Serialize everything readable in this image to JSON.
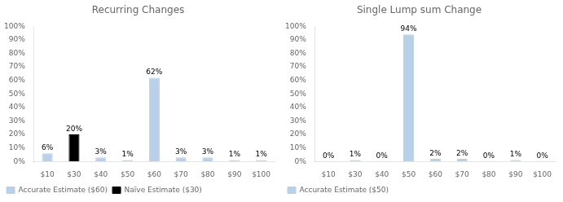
{
  "chart_data": [
    {
      "type": "bar",
      "title": "Recurring Changes",
      "categories": [
        "$10",
        "$30",
        "$40",
        "$50",
        "$60",
        "$70",
        "$80",
        "$90",
        "$100"
      ],
      "series": [
        {
          "name": "Accurate Estimate ($60)",
          "color": "#b8d0e8",
          "values": [
            6,
            null,
            3,
            1,
            62,
            3,
            3,
            1,
            1
          ],
          "value_labels": [
            "6%",
            null,
            "3%",
            "1%",
            "62%",
            "3%",
            "3%",
            "1%",
            "1%"
          ]
        },
        {
          "name": "Naïve Estimate ($30)",
          "color": "#000000",
          "values": [
            null,
            20,
            null,
            null,
            null,
            null,
            null,
            null,
            null
          ],
          "value_labels": [
            null,
            "20%",
            null,
            null,
            null,
            null,
            null,
            null,
            null
          ]
        }
      ],
      "ylim": [
        0,
        100
      ],
      "yticks": [
        {
          "value": 0,
          "label": "0%"
        },
        {
          "value": 10,
          "label": "10%"
        },
        {
          "value": 20,
          "label": "20%"
        },
        {
          "value": 30,
          "label": "30%"
        },
        {
          "value": 40,
          "label": "40%"
        },
        {
          "value": 50,
          "label": "50%"
        },
        {
          "value": 60,
          "label": "60%"
        },
        {
          "value": 70,
          "label": "70%"
        },
        {
          "value": 80,
          "label": "80%"
        },
        {
          "value": 90,
          "label": "90%"
        },
        {
          "value": 100,
          "label": "100%"
        }
      ],
      "grid": false,
      "legend": "bottom",
      "data_labels": true
    },
    {
      "type": "bar",
      "title": "Single Lump sum Change",
      "categories": [
        "$10",
        "$30",
        "$40",
        "$50",
        "$60",
        "$70",
        "$80",
        "$90",
        "$100"
      ],
      "series": [
        {
          "name": "Accurate Estimate ($50)",
          "color": "#b8d0e8",
          "values": [
            0,
            1,
            0,
            94,
            2,
            2,
            0,
            1,
            0
          ],
          "value_labels": [
            "0%",
            "1%",
            "0%",
            "94%",
            "2%",
            "2%",
            "0%",
            "1%",
            "0%"
          ]
        }
      ],
      "ylim": [
        0,
        100
      ],
      "yticks": [
        {
          "value": 0,
          "label": "0%"
        },
        {
          "value": 10,
          "label": "10%"
        },
        {
          "value": 20,
          "label": "20%"
        },
        {
          "value": 30,
          "label": "30%"
        },
        {
          "value": 40,
          "label": "40%"
        },
        {
          "value": 50,
          "label": "50%"
        },
        {
          "value": 60,
          "label": "60%"
        },
        {
          "value": 70,
          "label": "70%"
        },
        {
          "value": 80,
          "label": "80%"
        },
        {
          "value": 90,
          "label": "90%"
        },
        {
          "value": 100,
          "label": "100%"
        }
      ],
      "grid": false,
      "legend": "bottom",
      "data_labels": true
    }
  ]
}
